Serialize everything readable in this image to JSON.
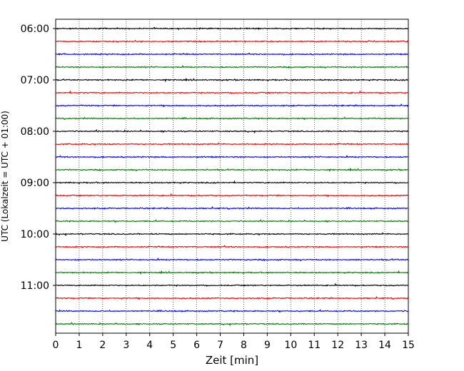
{
  "chart_data": {
    "type": "line",
    "title": "",
    "xlabel": "Zeit  [min]",
    "ylabel": "UTC (Lokalzeit = UTC + 01:00)",
    "xlim": [
      0,
      15
    ],
    "x_ticks": [
      "0",
      "1",
      "2",
      "3",
      "4",
      "5",
      "6",
      "7",
      "8",
      "9",
      "10",
      "11",
      "12",
      "13",
      "14",
      "15"
    ],
    "y_ticks": [
      "06:00",
      "07:00",
      "08:00",
      "09:00",
      "10:00",
      "11:00"
    ],
    "x_grid": true,
    "trace_interval_min": 15,
    "first_trace": "06:00",
    "trace_count": 24,
    "color_cycle": [
      "#000000",
      "#ff0000",
      "#0000ff",
      "#008000"
    ]
  }
}
